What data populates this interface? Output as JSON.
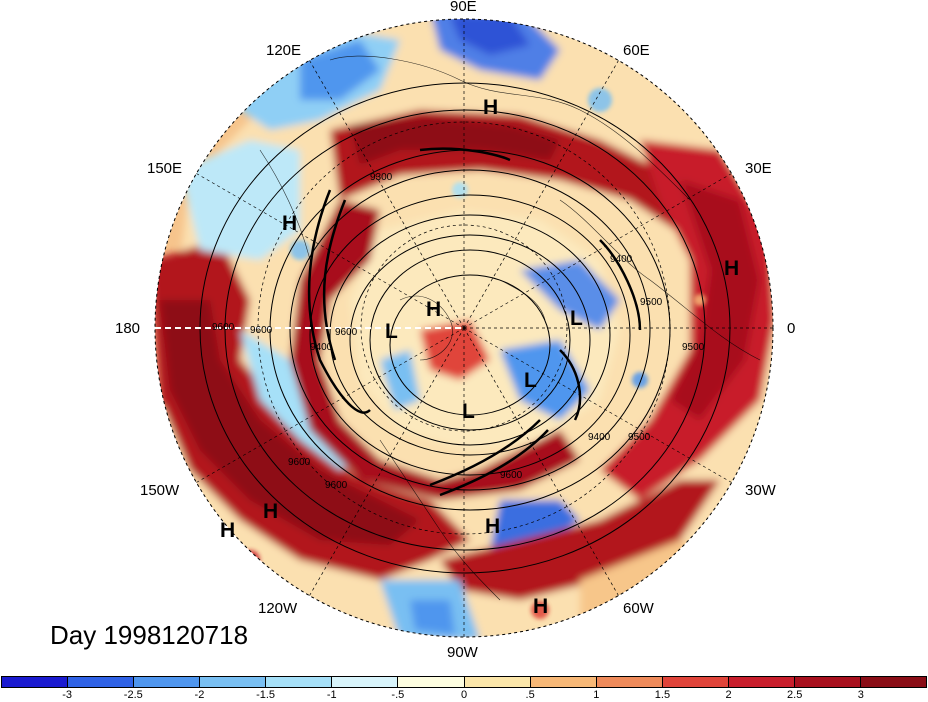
{
  "title": "Day 1998120718",
  "longitude_labels": {
    "lon_90e": "90E",
    "lon_120e": "120E",
    "lon_60e": "60E",
    "lon_150e": "150E",
    "lon_30e": "30E",
    "lon_180": "180",
    "lon_0": "0",
    "lon_150w": "150W",
    "lon_30w": "30W",
    "lon_120w": "120W",
    "lon_60w": "60W",
    "lon_90w": "90W"
  },
  "pressure_centers": [
    "H",
    "H",
    "H",
    "H",
    "H",
    "H",
    "H",
    "H",
    "L",
    "L",
    "L",
    "L"
  ],
  "contour_labels": [
    "9300",
    "9400",
    "9500",
    "9600",
    "9400",
    "9500",
    "9600",
    "9600",
    "9600",
    "9400",
    "9500",
    "9600",
    "9600"
  ],
  "colorbar": {
    "tick_labels": [
      "-3",
      "-2.5",
      "-2",
      "-1.5",
      "-1",
      "-.5",
      "0",
      ".5",
      "1",
      "1.5",
      "2",
      "2.5",
      "3"
    ],
    "colors": [
      "#1a1ad0",
      "#2f62e6",
      "#4f96ee",
      "#79bff2",
      "#a6e0f8",
      "#d8f4fb",
      "#fdfde0",
      "#fbe6aa",
      "#f7b877",
      "#ee8a5a",
      "#e0443a",
      "#c81e2c",
      "#a8101e",
      "#8a0d16"
    ]
  },
  "colors": {
    "dark_red": "#a8101e",
    "red": "#d3272f",
    "orange": "#f4a36c",
    "cream": "#fbefc2",
    "light_blue": "#a6e0f8",
    "blue": "#4f96ee",
    "dark_blue": "#2f52d6"
  }
}
